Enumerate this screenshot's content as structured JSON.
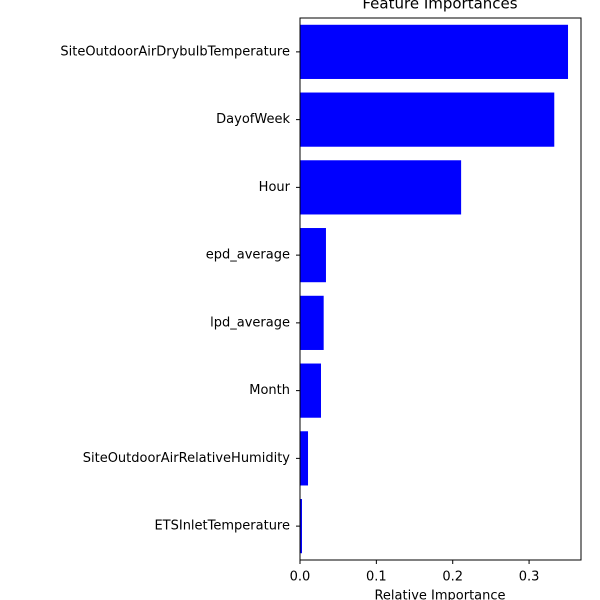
{
  "chart_data": {
    "type": "barh",
    "title": "Feature Importances",
    "x_label": "Relative Importance",
    "categories": [
      "SiteOutdoorAirDrybulbTemperature",
      "DayofWeek",
      "Hour",
      "epd_average",
      "lpd_average",
      "Month",
      "SiteOutdoorAirRelativeHumidity",
      "ETSInletTemperature"
    ],
    "values": [
      0.351,
      0.333,
      0.211,
      0.034,
      0.031,
      0.0275,
      0.0105,
      0.0026
    ],
    "color": "#0000ff",
    "xlim": [
      0,
      0.368
    ],
    "xticks": [
      {
        "value": 0,
        "label": "0.0"
      },
      0.1,
      0.2,
      0.3
    ]
  }
}
